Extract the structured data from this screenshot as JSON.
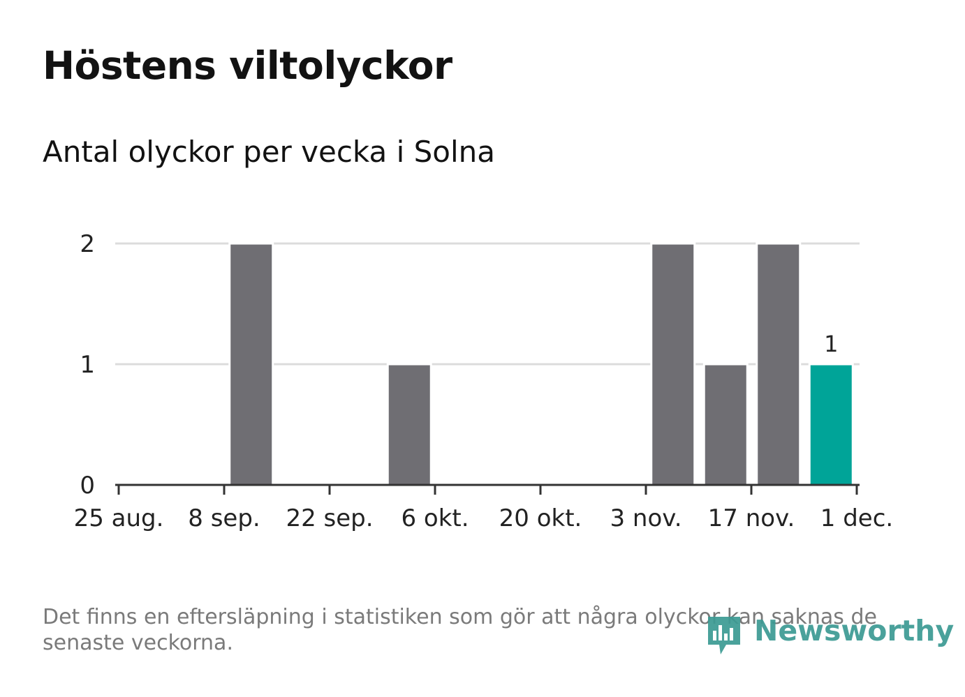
{
  "title": "Höstens viltolyckor",
  "subtitle": "Antal olyckor per vecka i Solna",
  "footnote": "Det finns en eftersläpning i statistiken som gör att några olyckor kan saknas de senaste veckorna.",
  "logo": {
    "text": "Newsworthy",
    "icon": "newsworthy-bar-icon"
  },
  "colors": {
    "bar": "#6f6e73",
    "highlight": "#00a498",
    "grid": "#dcdcdc",
    "axis": "#333333"
  },
  "chart_data": {
    "type": "bar",
    "title": "Höstens viltolyckor",
    "subtitle": "Antal olyckor per vecka i Solna",
    "xlabel": "",
    "ylabel": "",
    "x_ticks": [
      "25 aug.",
      "8 sep.",
      "22 sep.",
      "6 okt.",
      "20 okt.",
      "3 nov.",
      "17 nov.",
      "1 dec."
    ],
    "y_ticks": [
      0,
      1,
      2
    ],
    "ylim": [
      0,
      2
    ],
    "grid": true,
    "categories": [
      "2025-08-25",
      "2025-09-01",
      "2025-09-08",
      "2025-09-15",
      "2025-09-22",
      "2025-09-29",
      "2025-10-06",
      "2025-10-13",
      "2025-10-20",
      "2025-10-27",
      "2025-11-03",
      "2025-11-10",
      "2025-11-17",
      "2025-11-24"
    ],
    "values": [
      0,
      0,
      2,
      0,
      0,
      1,
      0,
      0,
      0,
      0,
      2,
      1,
      2,
      1
    ],
    "highlight_index": 13,
    "data_labels": [
      {
        "index": 13,
        "text": "1"
      }
    ]
  }
}
